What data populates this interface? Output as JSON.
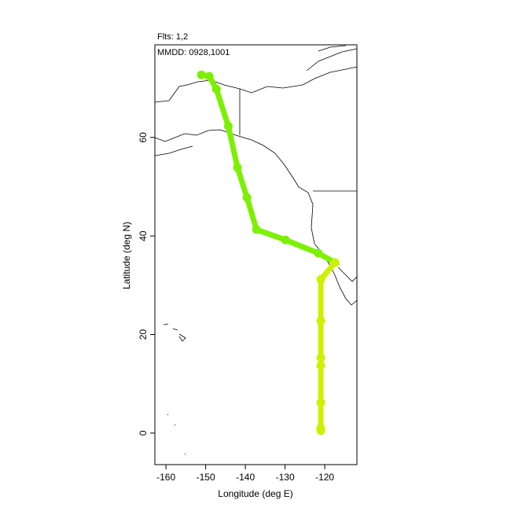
{
  "chart_data": {
    "type": "line",
    "title": "Flts: 1,2",
    "subtitle": "MMDD: 0928,1001",
    "x_label": "Longitude (deg E)",
    "y_label": "Latitude (deg N)",
    "xlim": [
      -162.8,
      -111.9
    ],
    "ylim": [
      -6.4,
      78.8
    ],
    "xticks": [
      -160,
      -150,
      -140,
      -130,
      -120
    ],
    "yticks": [
      0,
      20,
      40,
      60
    ],
    "series": [
      {
        "color": "#7cf000",
        "x": [
          -151.1,
          -149.1,
          -147.3,
          -144.3,
          -142.0,
          -139.6,
          -137.2,
          -129.9,
          -121.6,
          -117.4
        ],
        "values": [
          72.7,
          72.4,
          69.8,
          62.3,
          53.9,
          47.8,
          41.3,
          39.2,
          36.5,
          34.6
        ]
      },
      {
        "color": "#ccf000",
        "x": [
          -117.4,
          -121.0,
          -121.0,
          -121.0,
          -121.0,
          -121.0,
          -121.0,
          -121.0
        ],
        "values": [
          34.6,
          31.2,
          22.8,
          15.3,
          13.7,
          6.2,
          1.0,
          0.5
        ]
      }
    ]
  }
}
